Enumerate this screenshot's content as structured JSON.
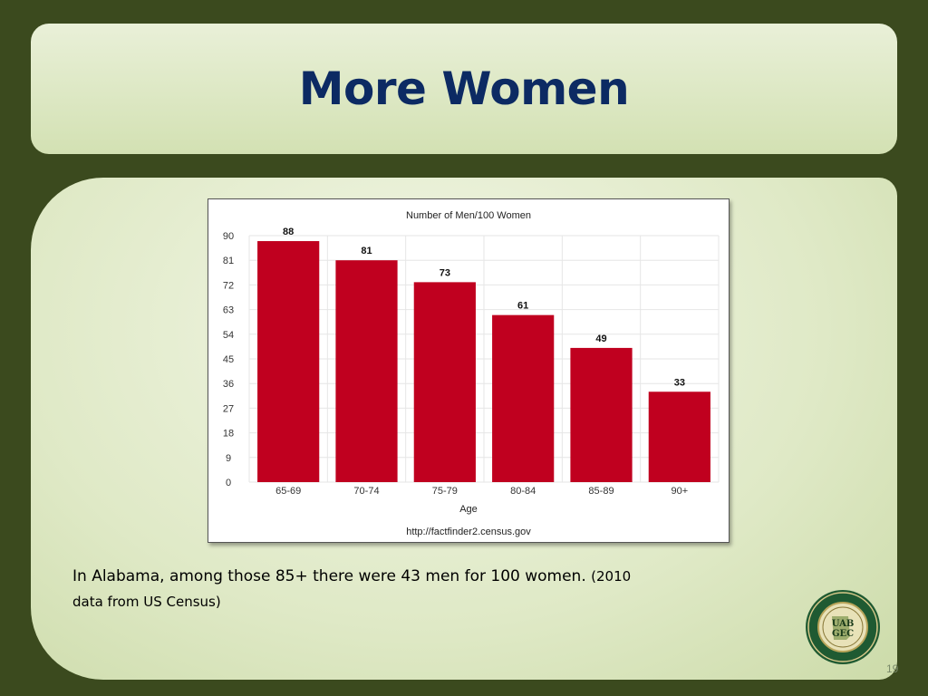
{
  "slide": {
    "title": "More Women",
    "caption_main": "In Alabama, among those 85+ there were 43 men for 100 women.",
    "caption_small": "(2010",
    "caption_line2": "data from US Census)",
    "page_number": "19",
    "seal": {
      "text": "UAB GEC",
      "ring_text": "THE UNIVERSITY OF ALABAMA AT BIRMINGHAM GERIATRIC EDUCATION CENTER"
    }
  },
  "chart_data": {
    "type": "bar",
    "title": "Number of Men/100 Women",
    "xlabel": "Age",
    "ylabel": "",
    "source": "http://factfinder2.census.gov",
    "categories": [
      "65-69",
      "70-74",
      "75-79",
      "80-84",
      "85-89",
      "90+"
    ],
    "values": [
      88,
      81,
      73,
      61,
      49,
      33
    ],
    "ylim": [
      0,
      90
    ],
    "yticks": [
      "0",
      "9",
      "18",
      "27",
      "36",
      "45",
      "54",
      "63",
      "72",
      "81",
      "90"
    ],
    "bar_color": "#c0001f",
    "grid": true
  }
}
